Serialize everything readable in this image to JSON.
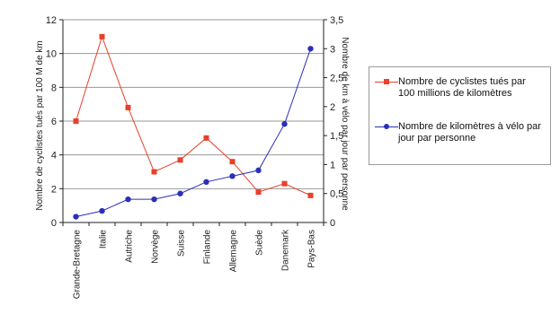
{
  "chart_data": {
    "type": "line",
    "categories": [
      "Grande-Bretagne",
      "Italie",
      "Autriche",
      "Norvège",
      "Suisse",
      "Finlande",
      "Allemagne",
      "Suède",
      "Danemark",
      "Pays-Bas"
    ],
    "series": [
      {
        "name": "Nombre de cyclistes tués par 100 millions de kilomètres",
        "axis": "left",
        "color": "#e8402a",
        "marker": "square",
        "values": [
          6.0,
          11.0,
          6.8,
          3.0,
          3.7,
          5.0,
          3.6,
          1.8,
          2.3,
          1.6
        ]
      },
      {
        "name": "Nombre de kilomètres à vélo par jour par personne",
        "axis": "right",
        "color": "#2a30b8",
        "marker": "circle",
        "values": [
          0.1,
          0.2,
          0.4,
          0.4,
          0.5,
          0.7,
          0.8,
          0.9,
          1.7,
          3.0
        ]
      }
    ],
    "ylabel": "Nombre de cyclistes tués par 100 M de km",
    "y2label": "Nombre de km à vélo par jour par personne",
    "ylim": [
      0,
      12
    ],
    "yticks": [
      "0",
      "2",
      "4",
      "6",
      "8",
      "10",
      "12"
    ],
    "y2lim": [
      0,
      3.5
    ],
    "y2ticks": [
      "0",
      "0,5",
      "1",
      "1,5",
      "2",
      "2,5",
      "3",
      "3,5"
    ],
    "grid": true,
    "legend_position": "right"
  }
}
